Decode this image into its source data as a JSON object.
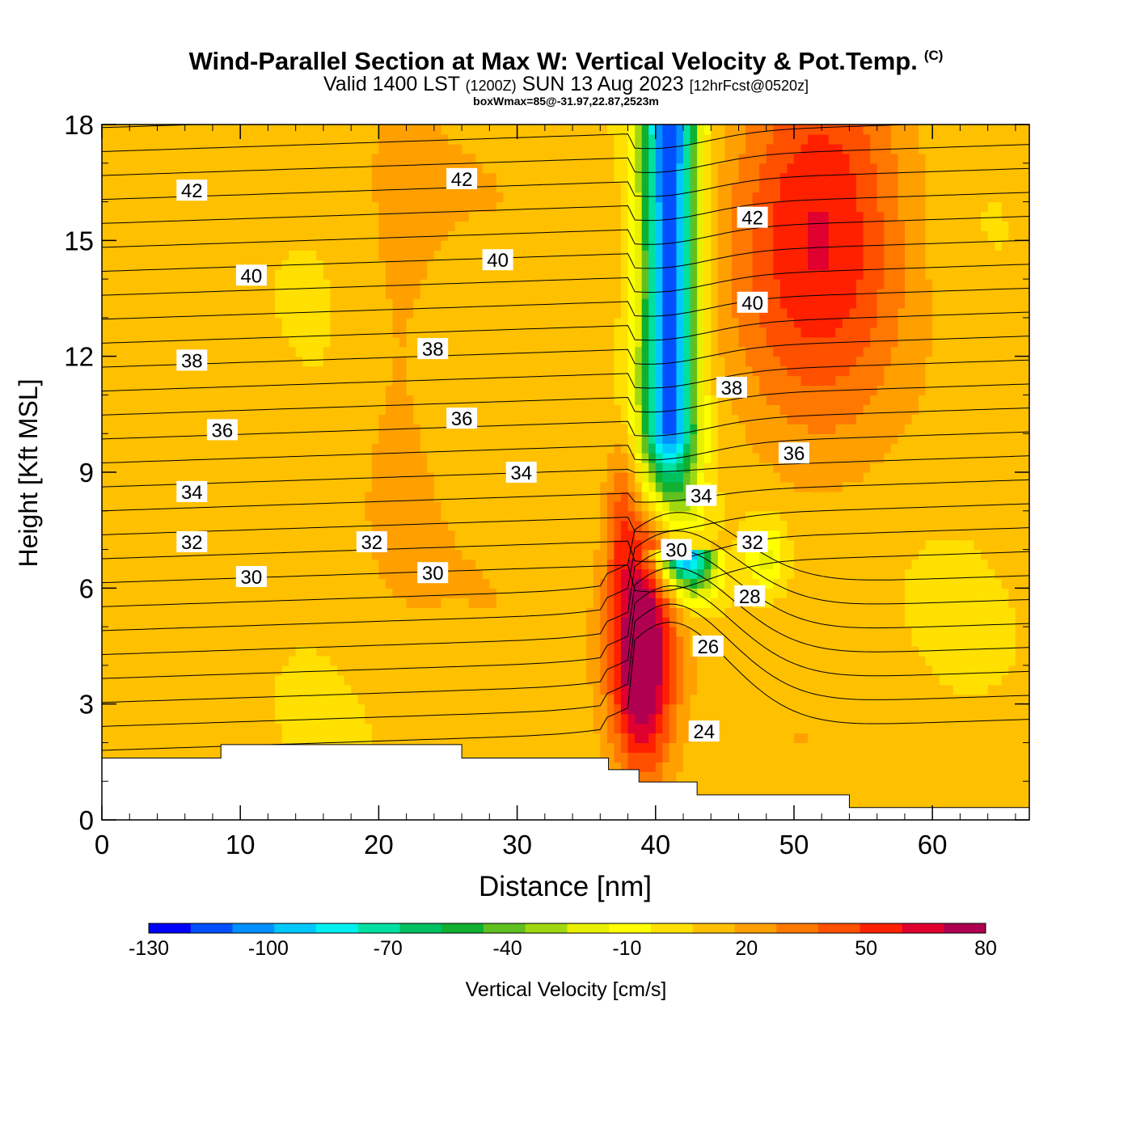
{
  "header": {
    "title": "Wind-Parallel Section at Max W: Vertical Velocity & Pot.Temp.",
    "copyright": "(C)",
    "valid_prefix": "Valid 1400 LST",
    "valid_utc": "(1200Z)",
    "valid_date": "SUN 13 Aug 2023",
    "forecast": "[12hrFcst@0520z]",
    "box_info": "boxWmax=85@-31.97,22.87,2523m"
  },
  "chart_data": {
    "type": "heatmap",
    "xlabel": "Distance [nm]",
    "ylabel": "Height [Kft MSL]",
    "xlim": [
      0,
      67
    ],
    "ylim": [
      0,
      18
    ],
    "x_ticks": [
      0,
      10,
      20,
      30,
      40,
      50,
      60
    ],
    "y_ticks": [
      0,
      3,
      6,
      9,
      12,
      15,
      18
    ],
    "colorbar": {
      "label": "Vertical Velocity [cm/s]",
      "min": -130,
      "max": 80,
      "step": 10,
      "tick_labels": [
        "-130",
        "-100",
        "-70",
        "-40",
        "-10",
        "20",
        "50",
        "80"
      ],
      "colors": [
        "#0000ff",
        "#0050ff",
        "#0090ff",
        "#00c8ff",
        "#00f0f0",
        "#00e0a0",
        "#00c060",
        "#10b030",
        "#60c020",
        "#a0d810",
        "#e8f000",
        "#ffff00",
        "#ffe000",
        "#ffc000",
        "#ffa000",
        "#ff7800",
        "#ff5000",
        "#ff2000",
        "#e00030",
        "#b00050"
      ]
    },
    "features": {
      "downdraft_core": {
        "distance_nm": 41,
        "height_kft": [
          7,
          18
        ],
        "min_cm_s": -120
      },
      "updraft_core": {
        "distance_nm": 39,
        "height_kft": [
          3,
          8
        ],
        "max_cm_s": 80
      },
      "upper_positive_region": {
        "distance_nm": [
          45,
          57
        ],
        "height_kft": [
          11,
          18
        ],
        "max_cm_s": 50
      }
    },
    "isentropes": {
      "field": "Pot.Temp.",
      "levels": [
        24,
        26,
        28,
        30,
        32,
        34,
        36,
        38,
        40,
        42
      ],
      "labels": [
        {
          "text": "42",
          "x": 6.5,
          "y": 16.3
        },
        {
          "text": "42",
          "x": 26,
          "y": 16.6
        },
        {
          "text": "42",
          "x": 47,
          "y": 15.6
        },
        {
          "text": "40",
          "x": 10.8,
          "y": 14.1
        },
        {
          "text": "40",
          "x": 28.6,
          "y": 14.5
        },
        {
          "text": "40",
          "x": 47,
          "y": 13.4
        },
        {
          "text": "38",
          "x": 6.5,
          "y": 11.9
        },
        {
          "text": "38",
          "x": 23.9,
          "y": 12.2
        },
        {
          "text": "38",
          "x": 45.5,
          "y": 11.2
        },
        {
          "text": "36",
          "x": 8.7,
          "y": 10.1
        },
        {
          "text": "36",
          "x": 26,
          "y": 10.4
        },
        {
          "text": "36",
          "x": 50,
          "y": 9.5
        },
        {
          "text": "34",
          "x": 6.5,
          "y": 8.5
        },
        {
          "text": "34",
          "x": 30.3,
          "y": 9.0
        },
        {
          "text": "34",
          "x": 43.3,
          "y": 8.4
        },
        {
          "text": "32",
          "x": 6.5,
          "y": 7.2
        },
        {
          "text": "32",
          "x": 19.5,
          "y": 7.2
        },
        {
          "text": "32",
          "x": 47,
          "y": 7.2
        },
        {
          "text": "30",
          "x": 10.8,
          "y": 6.3
        },
        {
          "text": "30",
          "x": 23.9,
          "y": 6.4
        },
        {
          "text": "30",
          "x": 41.5,
          "y": 7.0
        },
        {
          "text": "28",
          "x": 46.8,
          "y": 5.8
        },
        {
          "text": "26",
          "x": 43.8,
          "y": 4.5
        },
        {
          "text": "24",
          "x": 43.5,
          "y": 2.3
        }
      ]
    },
    "terrain_kft": [
      {
        "x": [
          0,
          8.6
        ],
        "height": 1.6
      },
      {
        "x": [
          8.6,
          26
        ],
        "height": 1.95
      },
      {
        "x": [
          26,
          36.6
        ],
        "height": 1.6
      },
      {
        "x": [
          36.6,
          38.8
        ],
        "height": 1.3
      },
      {
        "x": [
          38.8,
          43
        ],
        "height": 0.98
      },
      {
        "x": [
          43,
          54
        ],
        "height": 0.65
      },
      {
        "x": [
          54,
          67
        ],
        "height": 0.32
      }
    ]
  }
}
